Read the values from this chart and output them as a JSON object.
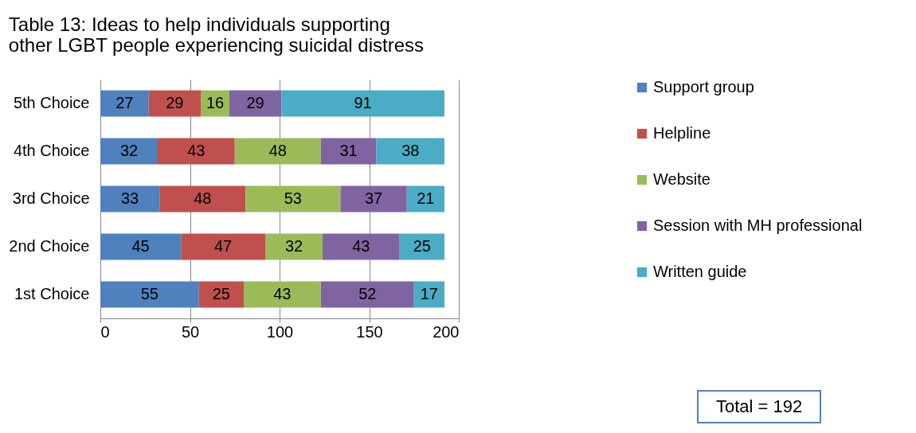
{
  "chart_data": {
    "type": "bar",
    "orientation": "horizontal",
    "stacked": true,
    "title": "Table 13: Ideas to help individuals supporting other LGBT people experiencing suicidal distress",
    "categories": [
      "5th Choice",
      "4th Choice",
      "3rd Choice",
      "2nd Choice",
      "1st Choice"
    ],
    "series": [
      {
        "name": "Support group",
        "color": "#4f81bd",
        "values": [
          27,
          32,
          33,
          45,
          55
        ]
      },
      {
        "name": "Helpline",
        "color": "#c0504d",
        "values": [
          29,
          43,
          48,
          47,
          25
        ]
      },
      {
        "name": "Website",
        "color": "#9bbb59",
        "values": [
          16,
          48,
          53,
          32,
          43
        ]
      },
      {
        "name": "Session with MH professional",
        "color": "#8064a2",
        "values": [
          29,
          31,
          37,
          43,
          52
        ]
      },
      {
        "name": "Written guide",
        "color": "#4bacc6",
        "values": [
          91,
          38,
          21,
          25,
          17
        ]
      }
    ],
    "xlim": [
      0,
      200
    ],
    "xticks": [
      0,
      50,
      100,
      150,
      200
    ],
    "grid": "x",
    "legend": "right",
    "data_labels": true,
    "annotations": [
      "Total = 192"
    ]
  }
}
